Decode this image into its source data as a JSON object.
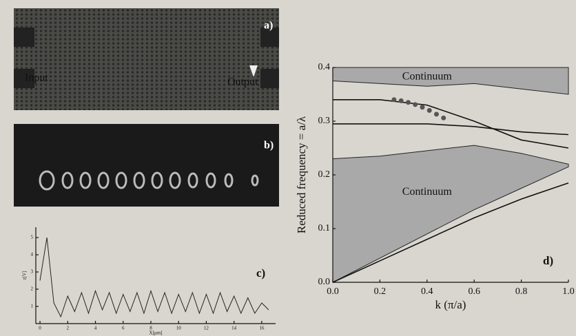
{
  "panels": {
    "a": {
      "label": "a)",
      "input": "Input",
      "output": "Output"
    },
    "b": {
      "label": "b)"
    }
  },
  "chart_data": [
    {
      "type": "line",
      "panel_label": "c)",
      "x_label": "X[µm]",
      "y_label": "z[V]",
      "x": [
        0,
        0.5,
        1,
        1.5,
        2,
        2.5,
        3,
        3.5,
        4,
        4.5,
        5,
        5.5,
        6,
        6.5,
        7,
        7.5,
        8,
        8.5,
        9,
        9.5,
        10,
        10.5,
        11,
        11.5,
        12,
        12.5,
        13,
        13.5,
        14,
        14.5,
        15,
        15.5,
        16,
        16.5
      ],
      "series": [
        {
          "color": "#222222",
          "values": [
            2.5,
            5.0,
            1.2,
            0.4,
            1.6,
            0.7,
            1.8,
            0.6,
            1.9,
            0.8,
            1.8,
            0.6,
            1.7,
            0.7,
            1.8,
            0.6,
            1.9,
            0.7,
            1.8,
            0.6,
            1.7,
            0.7,
            1.8,
            0.6,
            1.7,
            0.6,
            1.8,
            0.7,
            1.6,
            0.6,
            1.5,
            0.6,
            1.2,
            0.8
          ]
        }
      ],
      "xlim": [
        -0.3,
        17
      ],
      "ylim": [
        0,
        5.6
      ],
      "xticks": [
        0,
        2,
        4,
        6,
        8,
        10,
        12,
        14,
        16
      ],
      "yticks": [
        1,
        2,
        3,
        4,
        5
      ]
    },
    {
      "type": "line",
      "panel_label": "d)",
      "x_label": "k (π/a)",
      "y_label": "Reduced frequency = a/λ",
      "xlim": [
        0,
        1
      ],
      "ylim": [
        0,
        0.4
      ],
      "xticks": [
        {
          "value": 0,
          "label": "0.0"
        },
        0.2,
        0.4,
        0.6,
        0.8,
        {
          "value": 1,
          "label": "1.0"
        }
      ],
      "yticks": [
        {
          "value": 0,
          "label": "0.0"
        },
        0.1,
        0.2,
        0.3,
        0.4
      ],
      "areas": [
        {
          "label": "Continuum",
          "color": "#a9a9a9",
          "x": [
            0,
            0.2,
            0.4,
            0.6,
            0.8,
            1
          ],
          "lower": [
            0.375,
            0.37,
            0.365,
            0.37,
            0.36,
            0.35
          ],
          "upper": [
            0.4,
            0.4,
            0.4,
            0.4,
            0.4,
            0.4
          ]
        },
        {
          "label": "Continuum",
          "color": "#a9a9a9",
          "x": [
            0,
            0.2,
            0.4,
            0.6,
            0.8,
            1
          ],
          "lower": [
            0,
            0.045,
            0.09,
            0.135,
            0.175,
            0.215
          ],
          "upper": [
            0.23,
            0.235,
            0.245,
            0.255,
            0.24,
            0.22
          ]
        }
      ],
      "series": [
        {
          "color": "#111111",
          "x": [
            0,
            0.2,
            0.4,
            0.6,
            0.8,
            1
          ],
          "values": [
            0.34,
            0.34,
            0.33,
            0.3,
            0.265,
            0.25
          ]
        },
        {
          "color": "#111111",
          "x": [
            0,
            0.2,
            0.4,
            0.6,
            0.8,
            1
          ],
          "values": [
            0.295,
            0.295,
            0.295,
            0.29,
            0.28,
            0.275
          ]
        },
        {
          "color": "#111111",
          "x": [
            0,
            0.2,
            0.4,
            0.6,
            0.8,
            1
          ],
          "values": [
            0,
            0.04,
            0.08,
            0.12,
            0.155,
            0.185
          ]
        }
      ],
      "points": {
        "color": "#555555",
        "x": [
          0.26,
          0.29,
          0.32,
          0.35,
          0.38,
          0.41,
          0.44,
          0.47
        ],
        "values": [
          0.34,
          0.338,
          0.335,
          0.331,
          0.326,
          0.32,
          0.313,
          0.306
        ]
      }
    }
  ]
}
